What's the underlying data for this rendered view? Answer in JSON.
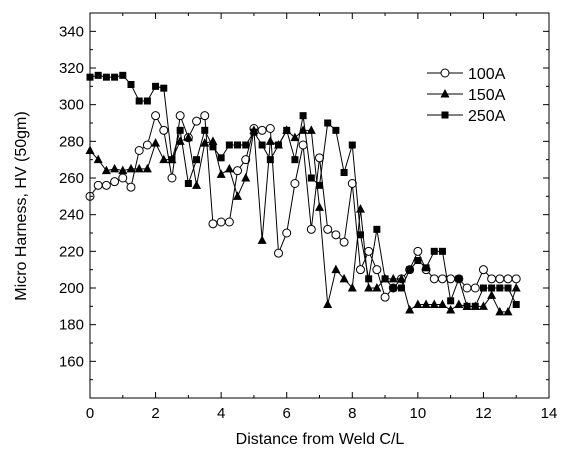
{
  "chart_data": {
    "type": "line",
    "title": "",
    "xlabel": "Distance from Weld C/L",
    "ylabel": "Micro Harness, HV (50gm)",
    "xlim": [
      0,
      14
    ],
    "ylim": [
      140,
      350
    ],
    "x_ticks": [
      "0",
      "2",
      "4",
      "6",
      "8",
      "10",
      "12",
      "14"
    ],
    "y_ticks": [
      "160",
      "180",
      "200",
      "220",
      "240",
      "260",
      "280",
      "300",
      "320",
      "340"
    ],
    "grid": false,
    "legend_position": "top-right",
    "series": [
      {
        "name": "100A",
        "marker": "open-circle",
        "x": [
          0,
          0.25,
          0.5,
          0.75,
          1.0,
          1.25,
          1.5,
          1.75,
          2.0,
          2.25,
          2.5,
          2.75,
          3.0,
          3.25,
          3.5,
          3.75,
          4.0,
          4.25,
          4.5,
          4.75,
          5.0,
          5.25,
          5.5,
          5.75,
          6.0,
          6.25,
          6.5,
          6.75,
          7.0,
          7.25,
          7.5,
          7.75,
          8.0,
          8.25,
          8.5,
          8.75,
          9.0,
          9.25,
          9.5,
          9.75,
          10.0,
          10.25,
          10.5,
          10.75,
          11.0,
          11.25,
          11.5,
          11.75,
          12.0,
          12.25,
          12.5,
          12.75,
          13.0
        ],
        "values": [
          250,
          256,
          256,
          258,
          260,
          255,
          275,
          278,
          294,
          286,
          260,
          294,
          282,
          291,
          294,
          235,
          236,
          236,
          264,
          270,
          287,
          286,
          287,
          219,
          230,
          257,
          278,
          232,
          271,
          232,
          229,
          225,
          257,
          210,
          220,
          210,
          195,
          200,
          205,
          210,
          220,
          210,
          205,
          205,
          205,
          205,
          200,
          200,
          210,
          205,
          205,
          205,
          205
        ]
      },
      {
        "name": "150A",
        "marker": "filled-triangle",
        "x": [
          0,
          0.25,
          0.5,
          0.75,
          1.0,
          1.25,
          1.5,
          1.75,
          2.0,
          2.25,
          2.5,
          2.75,
          3.0,
          3.25,
          3.5,
          3.75,
          4.0,
          4.25,
          4.5,
          4.75,
          5.0,
          5.25,
          5.5,
          5.75,
          6.0,
          6.25,
          6.5,
          6.75,
          7.0,
          7.25,
          7.5,
          7.75,
          8.0,
          8.25,
          8.5,
          8.75,
          9.0,
          9.25,
          9.5,
          9.75,
          10.0,
          10.25,
          10.5,
          10.75,
          11.0,
          11.25,
          11.5,
          11.75,
          12.0,
          12.25,
          12.5,
          12.75,
          13.0
        ],
        "values": [
          275,
          270,
          264,
          265,
          264,
          265,
          265,
          265,
          279,
          270,
          270,
          280,
          282,
          256,
          279,
          280,
          262,
          265,
          250,
          260,
          286,
          226,
          280,
          278,
          286,
          282,
          286,
          286,
          244,
          191,
          210,
          205,
          200,
          243,
          200,
          200,
          205,
          205,
          205,
          188,
          191,
          191,
          191,
          191,
          188,
          191,
          190,
          190,
          190,
          196,
          187,
          187,
          200
        ]
      },
      {
        "name": "250A",
        "marker": "filled-square",
        "x": [
          0,
          0.25,
          0.5,
          0.75,
          1.0,
          1.25,
          1.5,
          1.75,
          2.0,
          2.25,
          2.5,
          2.75,
          3.0,
          3.25,
          3.5,
          3.75,
          4.0,
          4.25,
          4.5,
          4.75,
          5.0,
          5.25,
          5.5,
          5.75,
          6.0,
          6.25,
          6.5,
          6.75,
          7.0,
          7.25,
          7.5,
          7.75,
          8.0,
          8.25,
          8.5,
          8.75,
          9.0,
          9.25,
          9.5,
          9.75,
          10.0,
          10.25,
          10.5,
          10.75,
          11.0,
          11.25,
          11.5,
          11.75,
          12.0,
          12.25,
          12.5,
          12.75,
          13.0
        ],
        "values": [
          315,
          316,
          315,
          315,
          316,
          311,
          302,
          302,
          310,
          309,
          270,
          286,
          257,
          270,
          286,
          277,
          271,
          278,
          278,
          278,
          285,
          278,
          270,
          278,
          286,
          270,
          294,
          260,
          256,
          290,
          286,
          263,
          278,
          229,
          205,
          232,
          205,
          200,
          200,
          210,
          215,
          211,
          220,
          220,
          193,
          205,
          190,
          190,
          200,
          200,
          200,
          200,
          191
        ]
      }
    ]
  }
}
